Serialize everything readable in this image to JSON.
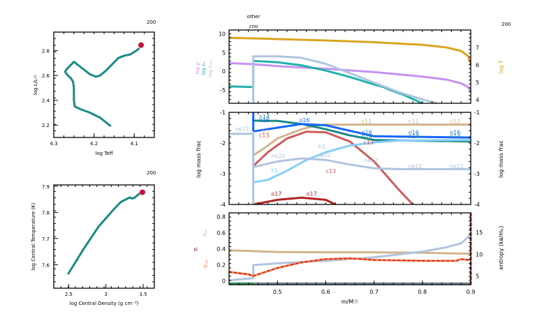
{
  "chart_data": [
    {
      "id": "hr",
      "type": "line",
      "title": "",
      "model_number": "200",
      "xlabel": "log Teff",
      "ylabel": "log L/L☉",
      "xlim": [
        4.3,
        4.05
      ],
      "ylim": [
        2.1,
        2.95
      ],
      "xticks": [
        "4.3",
        "4.2",
        "4.1"
      ],
      "xtick_values": [
        4.3,
        4.2,
        4.1
      ],
      "yticks": [
        "2.2",
        "2.4",
        "2.6",
        "2.8"
      ],
      "ytick_values": [
        2.2,
        2.4,
        2.6,
        2.8
      ],
      "color": "#1b8a84",
      "marker_color": "#c8103c",
      "x": [
        4.158,
        4.185,
        4.21,
        4.235,
        4.248,
        4.25,
        4.25,
        4.252,
        4.258,
        4.265,
        4.272,
        4.268,
        4.25,
        4.23,
        4.21,
        4.195,
        4.185,
        4.17,
        4.155,
        4.14,
        4.125,
        4.11,
        4.095,
        4.087
      ],
      "y": [
        2.19,
        2.26,
        2.3,
        2.33,
        2.35,
        2.4,
        2.5,
        2.55,
        2.58,
        2.6,
        2.63,
        2.65,
        2.71,
        2.66,
        2.61,
        2.59,
        2.6,
        2.64,
        2.69,
        2.74,
        2.76,
        2.77,
        2.8,
        2.82
      ],
      "current_point": {
        "x": 4.083,
        "y": 2.845
      }
    },
    {
      "id": "center",
      "type": "line",
      "model_number": "200",
      "xlabel": "log Central Density (g cm⁻³)",
      "ylabel": "log Central Temperature (K)",
      "xlim": [
        2.3,
        3.65
      ],
      "ylim": [
        7.51,
        7.905
      ],
      "xticks": [
        "2.5",
        "3",
        "3.5"
      ],
      "xtick_values": [
        2.5,
        3,
        3.5
      ],
      "yticks": [
        "7.6",
        "7.7",
        "7.8",
        "7.9"
      ],
      "ytick_values": [
        7.6,
        7.7,
        7.8,
        7.9
      ],
      "color": "#1b8a84",
      "marker_color": "#c8103c",
      "x": [
        2.49,
        2.7,
        2.9,
        3.1,
        3.2,
        3.32,
        3.35,
        3.38,
        3.45,
        3.49
      ],
      "y": [
        7.563,
        7.66,
        7.745,
        7.81,
        7.84,
        7.857,
        7.853,
        7.855,
        7.872,
        7.877
      ],
      "current_point": {
        "x": 3.49,
        "y": 7.877
      }
    },
    {
      "id": "profile-top",
      "type": "line",
      "model_number": "200",
      "annotations": [
        "other",
        "cno"
      ],
      "xlim": [
        0.4,
        0.9
      ],
      "ylim_left": [
        -8.5,
        11
      ],
      "ylim_right": [
        3.8,
        8
      ],
      "yticks_left": [
        "-5",
        "0",
        "5",
        "10"
      ],
      "ytick_values_left": [
        -5,
        0,
        5,
        10
      ],
      "yticks_right": [
        "4",
        "5",
        "6",
        "7"
      ],
      "ytick_values_right": [
        4,
        5,
        6,
        7
      ],
      "ylabel_left": [
        "log ρ",
        "log εₙ",
        "log εₙᵤₓ"
      ],
      "ylabel_left_colors": [
        "#c792f0",
        "#20b2aa",
        "#b0c4de"
      ],
      "ylabel_right": "log T",
      "ylabel_right_color": "#daa520",
      "series": [
        {
          "name": "log T",
          "axis": "right",
          "color": "#daa520",
          "x": [
            0.4,
            0.45,
            0.5,
            0.6,
            0.7,
            0.8,
            0.85,
            0.88,
            0.895,
            0.9
          ],
          "y": [
            7.55,
            7.52,
            7.48,
            7.4,
            7.3,
            7.15,
            7.0,
            6.8,
            6.5,
            6.0
          ]
        },
        {
          "name": "log rho",
          "axis": "left",
          "color": "#c792f0",
          "x": [
            0.4,
            0.45,
            0.5,
            0.6,
            0.7,
            0.8,
            0.85,
            0.88,
            0.895,
            0.9
          ],
          "y": [
            2.2,
            1.9,
            1.4,
            0.7,
            -0.2,
            -1.4,
            -2.2,
            -3.2,
            -4.2,
            -5.5
          ]
        },
        {
          "name": "log eps_nuc",
          "axis": "left",
          "color": "#20b2aa",
          "x": [
            0.4,
            0.45,
            0.4501,
            0.5,
            0.55,
            0.6,
            0.65,
            0.7,
            0.72,
            0.73,
            0.76,
            0.8
          ],
          "y": [
            -4.0,
            -4.2,
            2.8,
            2.4,
            1.6,
            0.2,
            -1.5,
            -3.5,
            -4.2,
            -4.8,
            -6.2,
            -8.5
          ]
        },
        {
          "name": "log eps_max",
          "axis": "left",
          "color": "#b0c4de",
          "x": [
            0.45,
            0.4501,
            0.5,
            0.55,
            0.6,
            0.65,
            0.7,
            0.75,
            0.8,
            0.83
          ],
          "y": [
            -8.5,
            4.0,
            4.0,
            3.6,
            2.0,
            -0.5,
            -3.0,
            -5.5,
            -7.5,
            -8.5
          ]
        }
      ]
    },
    {
      "id": "profile-abund",
      "type": "line",
      "xlim": [
        0.4,
        0.9
      ],
      "ylim": [
        -4,
        -1
      ],
      "yticks": [
        "-1",
        "-2",
        "-3",
        "-4"
      ],
      "ytick_values": [
        -1,
        -2,
        -3,
        -4
      ],
      "ylabel": "log mass frac",
      "series": [
        {
          "name": "c12",
          "color": "#d2b48c",
          "x": [
            0.45,
            0.47,
            0.5,
            0.55,
            0.58,
            0.6,
            0.9
          ],
          "y": [
            -2.4,
            -2.2,
            -1.85,
            -1.55,
            -1.43,
            -1.4,
            -1.4
          ]
        },
        {
          "name": "c13",
          "color": "#cd5c5c",
          "x": [
            0.45,
            0.48,
            0.52,
            0.56,
            0.6,
            0.65,
            0.7,
            0.75,
            0.78
          ],
          "y": [
            -2.75,
            -2.3,
            -1.85,
            -1.63,
            -1.65,
            -1.95,
            -2.6,
            -3.5,
            -4.0
          ]
        },
        {
          "name": "n14",
          "color": "#1b8a84",
          "x": [
            0.4501,
            0.5,
            0.55,
            0.6,
            0.65,
            0.7,
            0.9
          ],
          "y": [
            -1.27,
            -1.28,
            -1.38,
            -1.55,
            -1.75,
            -1.9,
            -1.95
          ]
        },
        {
          "name": "o16",
          "color": "#1565ff",
          "x": [
            0.4501,
            0.5,
            0.55,
            0.6,
            0.65,
            0.7,
            0.9
          ],
          "y": [
            -1.62,
            -1.5,
            -1.38,
            -1.42,
            -1.6,
            -1.78,
            -1.82
          ]
        },
        {
          "name": "o16-leftstep",
          "color": "#1565ff",
          "x": [
            0.45,
            0.45
          ],
          "y": [
            -1.0,
            -1.62
          ]
        },
        {
          "name": "h1",
          "color": "#87cefa",
          "x": [
            0.4501,
            0.48,
            0.52,
            0.56,
            0.6,
            0.65,
            0.7,
            0.75,
            0.9
          ],
          "y": [
            -3.28,
            -3.2,
            -2.9,
            -2.55,
            -2.3,
            -2.08,
            -1.98,
            -1.92,
            -1.9
          ]
        },
        {
          "name": "ne22",
          "color": "#b0c4de",
          "x": [
            0.4,
            0.45,
            0.4501,
            0.5,
            0.55,
            0.6,
            0.65,
            0.7,
            0.75,
            0.9
          ],
          "y": [
            -1.7,
            -1.7,
            -2.78,
            -2.6,
            -2.5,
            -2.55,
            -2.7,
            -2.82,
            -2.85,
            -2.85
          ]
        },
        {
          "name": "o17",
          "color": "#b22222",
          "x": [
            0.45,
            0.5,
            0.55,
            0.6,
            0.62
          ],
          "y": [
            -4.0,
            -3.85,
            -3.78,
            -3.85,
            -4.0
          ]
        },
        {
          "name": "vert",
          "color": "#b0c4de",
          "x": [
            0.45,
            0.45
          ],
          "y": [
            -1.7,
            -4.0
          ]
        }
      ],
      "labels": [
        {
          "text": "n14",
          "color": "#1b8a84",
          "x": 0.462,
          "y": -1.2
        },
        {
          "text": "o16",
          "color": "#1565ff",
          "x": 0.462,
          "y": -1.32
        },
        {
          "text": "ne22",
          "color": "#b0c4de",
          "x": 0.412,
          "y": -1.6
        },
        {
          "text": "o16",
          "color": "#1565ff",
          "x": 0.545,
          "y": -1.32
        },
        {
          "text": "c12",
          "color": "#d2b48c",
          "x": 0.462,
          "y": -1.7
        },
        {
          "text": "c13",
          "color": "#cd5c5c",
          "x": 0.462,
          "y": -1.82
        },
        {
          "text": "c12",
          "color": "#d2b48c",
          "x": 0.674,
          "y": -1.35
        },
        {
          "text": "c12",
          "color": "#d2b48c",
          "x": 0.771,
          "y": -1.35
        },
        {
          "text": "c12",
          "color": "#d2b48c",
          "x": 0.857,
          "y": -1.35
        },
        {
          "text": "o16",
          "color": "#1565ff",
          "x": 0.674,
          "y": -1.72
        },
        {
          "text": "o16",
          "color": "#1565ff",
          "x": 0.771,
          "y": -1.72
        },
        {
          "text": "o16",
          "color": "#1565ff",
          "x": 0.857,
          "y": -1.72
        },
        {
          "text": "n14",
          "color": "#1b8a84",
          "x": 0.674,
          "y": -1.84
        },
        {
          "text": "n14",
          "color": "#1b8a84",
          "x": 0.771,
          "y": -1.84
        },
        {
          "text": "n14",
          "color": "#1b8a84",
          "x": 0.857,
          "y": -1.84
        },
        {
          "text": "c13",
          "color": "#cd5c5c",
          "x": 0.678,
          "y": -2.05
        },
        {
          "text": "h1",
          "color": "#87cefa",
          "x": 0.585,
          "y": -2.18
        },
        {
          "text": "h1",
          "color": "#87cefa",
          "x": 0.487,
          "y": -2.95
        },
        {
          "text": "ne22",
          "color": "#b0c4de",
          "x": 0.487,
          "y": -2.48
        },
        {
          "text": "ne22",
          "color": "#b0c4de",
          "x": 0.582,
          "y": -2.45
        },
        {
          "text": "ne22",
          "color": "#b0c4de",
          "x": 0.679,
          "y": -2.62
        },
        {
          "text": "ne22",
          "color": "#b0c4de",
          "x": 0.77,
          "y": -2.82
        },
        {
          "text": "ne22",
          "color": "#b0c4de",
          "x": 0.856,
          "y": -2.82
        },
        {
          "text": "c13",
          "color": "#cd5c5c",
          "x": 0.6,
          "y": -2.98
        },
        {
          "text": "o17",
          "color": "#b22222",
          "x": 0.487,
          "y": -3.72
        },
        {
          "text": "o17",
          "color": "#b22222",
          "x": 0.56,
          "y": -3.72
        }
      ]
    },
    {
      "id": "profile-grad",
      "type": "line",
      "xlim": [
        0.4,
        0.9
      ],
      "ylim_left": [
        -0.05,
        0.85
      ],
      "ylim_right": [
        3,
        19.5
      ],
      "xlabel": "m/M☉",
      "xticks": [
        "0.5",
        "0.6",
        "0.7",
        "0.8",
        "0.9"
      ],
      "xtick_values": [
        0.5,
        0.6,
        0.7,
        0.8,
        0.9
      ],
      "yticks_left": [
        "0",
        "0.2",
        "0.4",
        "0.6",
        "0.8"
      ],
      "ytick_values_left": [
        0,
        0.2,
        0.4,
        0.6,
        0.8
      ],
      "yticks_right": [
        "5",
        "10",
        "15"
      ],
      "ytick_values_right": [
        5,
        10,
        15
      ],
      "ylabel_left": [
        "∇ₐₔ",
        "∇ₜ",
        "∇ᵣₐₔ"
      ],
      "ylabel_left_colors": [
        "#d2b48c",
        "#b22222",
        "#ff7f50"
      ],
      "ylabel_right": "entropy (kʙ/mₚ)",
      "series": [
        {
          "name": "grad_ad",
          "axis": "left",
          "color": "#d2b48c",
          "x": [
            0.4,
            0.45,
            0.5,
            0.6,
            0.7,
            0.8,
            0.88,
            0.9
          ],
          "y": [
            0.38,
            0.37,
            0.36,
            0.355,
            0.355,
            0.35,
            0.34,
            0.34
          ]
        },
        {
          "name": "entropy",
          "axis": "right",
          "color": "#b0c4de",
          "x": [
            0.4,
            0.45,
            0.4501,
            0.5,
            0.6,
            0.7,
            0.8,
            0.85,
            0.88,
            0.9
          ],
          "y": [
            4.0,
            4.5,
            7.5,
            7.9,
            8.5,
            9.3,
            10.6,
            11.6,
            12.5,
            14.5
          ]
        },
        {
          "name": "grad_rad",
          "axis": "left",
          "color": "#ff7f50",
          "x": [
            0.4,
            0.44,
            0.4501,
            0.5,
            0.55,
            0.6,
            0.65,
            0.7,
            0.8,
            0.87,
            0.88,
            0.895,
            0.9
          ],
          "y": [
            0.11,
            0.08,
            0.06,
            0.16,
            0.23,
            0.27,
            0.28,
            0.26,
            0.25,
            0.25,
            0.27,
            0.26,
            0.27
          ]
        },
        {
          "name": "grad_T",
          "axis": "left",
          "color": "#b22222",
          "dashed": true,
          "x": [
            0.4,
            0.44,
            0.4501,
            0.5,
            0.55,
            0.6,
            0.65,
            0.7,
            0.8,
            0.87,
            0.88,
            0.895,
            0.9
          ],
          "y": [
            0.11,
            0.08,
            0.06,
            0.16,
            0.23,
            0.27,
            0.28,
            0.26,
            0.25,
            0.25,
            0.27,
            0.26,
            0.27
          ]
        },
        {
          "name": "conv-zone",
          "axis": "left",
          "color": "#2e8b57",
          "x": [
            0.4,
            0.45
          ],
          "y": [
            -0.035,
            -0.035
          ]
        },
        {
          "name": "base",
          "axis": "left",
          "color": "#708090",
          "x": [
            0.45,
            0.9
          ],
          "y": [
            -0.035,
            -0.035
          ]
        }
      ]
    }
  ]
}
